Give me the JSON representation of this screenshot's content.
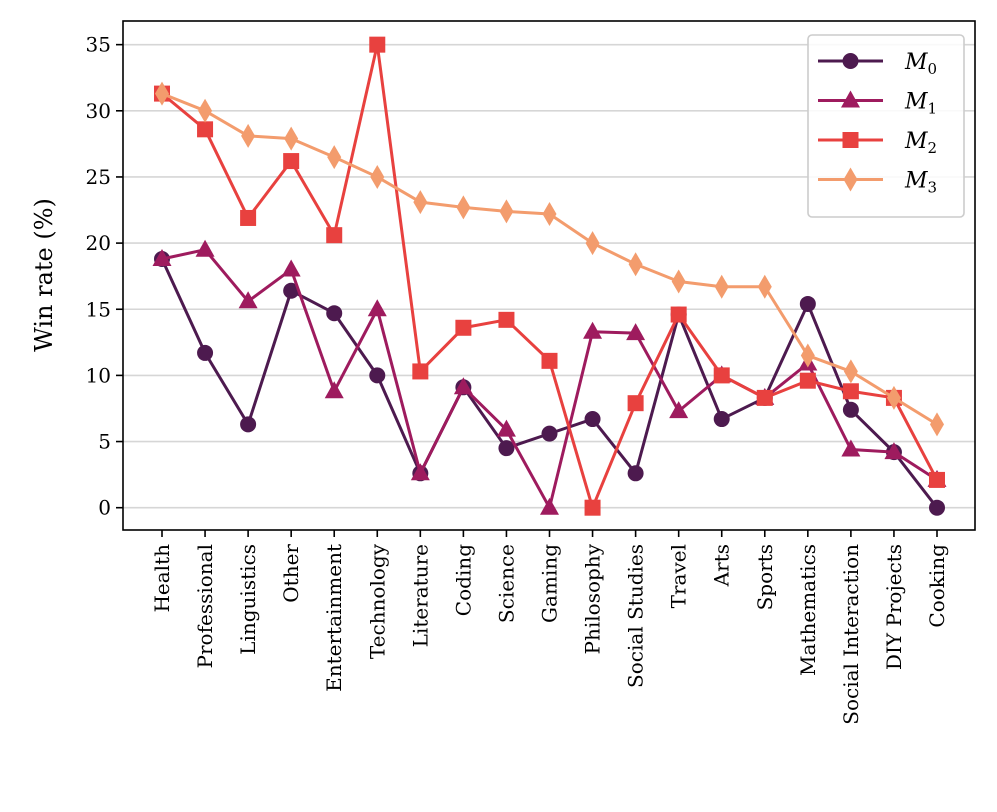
{
  "chart_data": {
    "type": "line",
    "title": "",
    "xlabel": "",
    "ylabel": "Win rate (%)",
    "ylim": [
      -1.8,
      36.8
    ],
    "yticks": [
      0,
      5,
      10,
      15,
      20,
      25,
      30,
      35
    ],
    "grid": "horizontal",
    "legend_position": "top-right",
    "categories": [
      "Health",
      "Professional",
      "Linguistics",
      "Other",
      "Entertainment",
      "Technology",
      "Literature",
      "Coding",
      "Science",
      "Gaming",
      "Philosophy",
      "Social Studies",
      "Travel",
      "Arts",
      "Sports",
      "Mathematics",
      "Social Interaction",
      "DIY Projects",
      "Cooking"
    ],
    "series": [
      {
        "name": "M",
        "subscript": "0",
        "marker": "circle",
        "color": "#4d1a4f",
        "values": [
          18.8,
          11.7,
          6.3,
          16.4,
          14.7,
          10.0,
          2.6,
          9.1,
          4.5,
          5.6,
          6.7,
          2.6,
          14.6,
          6.7,
          8.3,
          15.4,
          7.4,
          4.2,
          0.0
        ]
      },
      {
        "name": "M",
        "subscript": "1",
        "marker": "triangle",
        "color": "#9e1b5e",
        "values": [
          18.8,
          19.5,
          15.6,
          18.0,
          8.8,
          15.0,
          2.6,
          9.1,
          5.9,
          0.0,
          13.3,
          13.2,
          7.3,
          10.0,
          8.3,
          10.9,
          4.4,
          4.2,
          2.1
        ]
      },
      {
        "name": "M",
        "subscript": "2",
        "marker": "square",
        "color": "#e8413f",
        "values": [
          31.3,
          28.6,
          21.9,
          26.2,
          20.6,
          35.0,
          10.3,
          13.6,
          14.2,
          11.1,
          0.0,
          7.9,
          14.6,
          10.0,
          8.3,
          9.6,
          8.8,
          8.3,
          2.1
        ]
      },
      {
        "name": "M",
        "subscript": "3",
        "marker": "diamond",
        "color": "#f39c6d",
        "values": [
          31.3,
          30.0,
          28.1,
          27.9,
          26.5,
          25.0,
          23.1,
          22.7,
          22.4,
          22.2,
          20.0,
          18.4,
          17.1,
          16.7,
          16.7,
          11.5,
          10.3,
          8.3,
          6.3
        ]
      }
    ]
  }
}
